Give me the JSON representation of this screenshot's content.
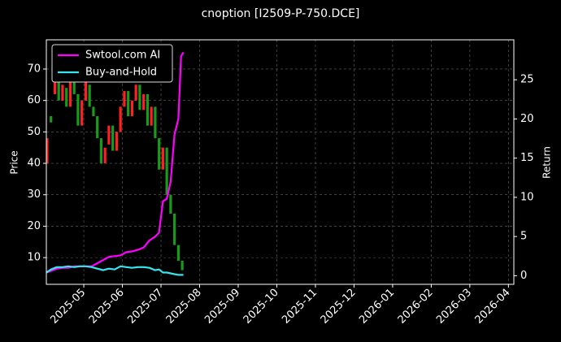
{
  "chart_data": {
    "type": "candlestick",
    "title": "cnoption [I2509-P-750.DCE]",
    "ylabel": "Price",
    "y2label": "Return",
    "xlim": [
      -0.97,
      11.14
    ],
    "xticks": [
      {
        "value": 0,
        "label": "2025-05"
      },
      {
        "value": 1,
        "label": "2025-06"
      },
      {
        "value": 2,
        "label": "2025-07"
      },
      {
        "value": 3,
        "label": "2025-08"
      },
      {
        "value": 4,
        "label": "2025-09"
      },
      {
        "value": 5,
        "label": "2025-10"
      },
      {
        "value": 6,
        "label": "2025-11"
      },
      {
        "value": 7,
        "label": "2025-12"
      },
      {
        "value": 8,
        "label": "2026-01"
      },
      {
        "value": 9,
        "label": "2026-02"
      },
      {
        "value": 10,
        "label": "2026-03"
      },
      {
        "value": 11,
        "label": "2026-04"
      }
    ],
    "ylim": [
      1.5,
      79.3
    ],
    "yticks": [
      10,
      20,
      30,
      40,
      50,
      60,
      70
    ],
    "y2lim": [
      -1.1,
      30.1
    ],
    "y2ticks": [
      0,
      5,
      10,
      15,
      20,
      25
    ],
    "grid": true,
    "legend": "upper left",
    "up_color": "#ff2020",
    "down_color": "#1a9a1a",
    "candles": {
      "x": [
        -0.95,
        -0.85,
        -0.75,
        -0.65,
        -0.55,
        -0.45,
        -0.35,
        -0.25,
        -0.15,
        -0.05,
        0.05,
        0.15,
        0.25,
        0.35,
        0.45,
        0.55,
        0.65,
        0.75,
        0.85,
        0.95,
        1.05,
        1.15,
        1.25,
        1.35,
        1.45,
        1.55,
        1.65,
        1.75,
        1.85,
        1.95,
        2.05,
        2.15,
        2.25,
        2.35,
        2.45,
        2.55
      ],
      "open": [
        40,
        55,
        62,
        66,
        60,
        64,
        58,
        66,
        62,
        52,
        60,
        65,
        58,
        55,
        48,
        40,
        46,
        52,
        44,
        50,
        58,
        63,
        55,
        60,
        65,
        57,
        62,
        52,
        58,
        48,
        38,
        45,
        30,
        24,
        14,
        9
      ],
      "close": [
        48,
        53,
        68,
        60,
        65,
        58,
        66,
        62,
        52,
        60,
        66,
        58,
        55,
        48,
        40,
        45,
        52,
        44,
        50,
        58,
        63,
        55,
        60,
        65,
        57,
        62,
        52,
        58,
        48,
        38,
        45,
        30,
        24,
        14,
        9,
        6
      ]
    },
    "x": [
      -0.97,
      -0.85,
      -0.7,
      -0.55,
      -0.4,
      -0.25,
      -0.1,
      0.05,
      0.2,
      0.35,
      0.5,
      0.65,
      0.8,
      0.95,
      1.1,
      1.25,
      1.4,
      1.55,
      1.7,
      1.85,
      1.95,
      2.05,
      2.15,
      2.25,
      2.35,
      2.45,
      2.52,
      2.58
    ],
    "series": [
      {
        "name": "Swtool.com AI",
        "color": "#ff00ff",
        "axis": "y2",
        "values": [
          0.4,
          0.6,
          0.9,
          1.0,
          1.0,
          1.2,
          1.2,
          1.2,
          1.2,
          1.6,
          2.0,
          2.4,
          2.5,
          2.6,
          3.0,
          3.1,
          3.3,
          3.6,
          4.5,
          5.0,
          5.5,
          9.5,
          9.8,
          12,
          18,
          20,
          28,
          28.5
        ]
      },
      {
        "name": "Buy-and-Hold",
        "color": "#33e6f0",
        "axis": "y2",
        "values": [
          0.4,
          0.8,
          1.1,
          1.1,
          1.2,
          1.1,
          1.2,
          1.2,
          1.1,
          0.9,
          0.7,
          0.9,
          0.8,
          1.2,
          1.1,
          1.0,
          1.1,
          1.1,
          1.0,
          0.7,
          0.8,
          0.4,
          0.4,
          0.3,
          0.2,
          0.1,
          0.1,
          0.1
        ]
      }
    ]
  }
}
